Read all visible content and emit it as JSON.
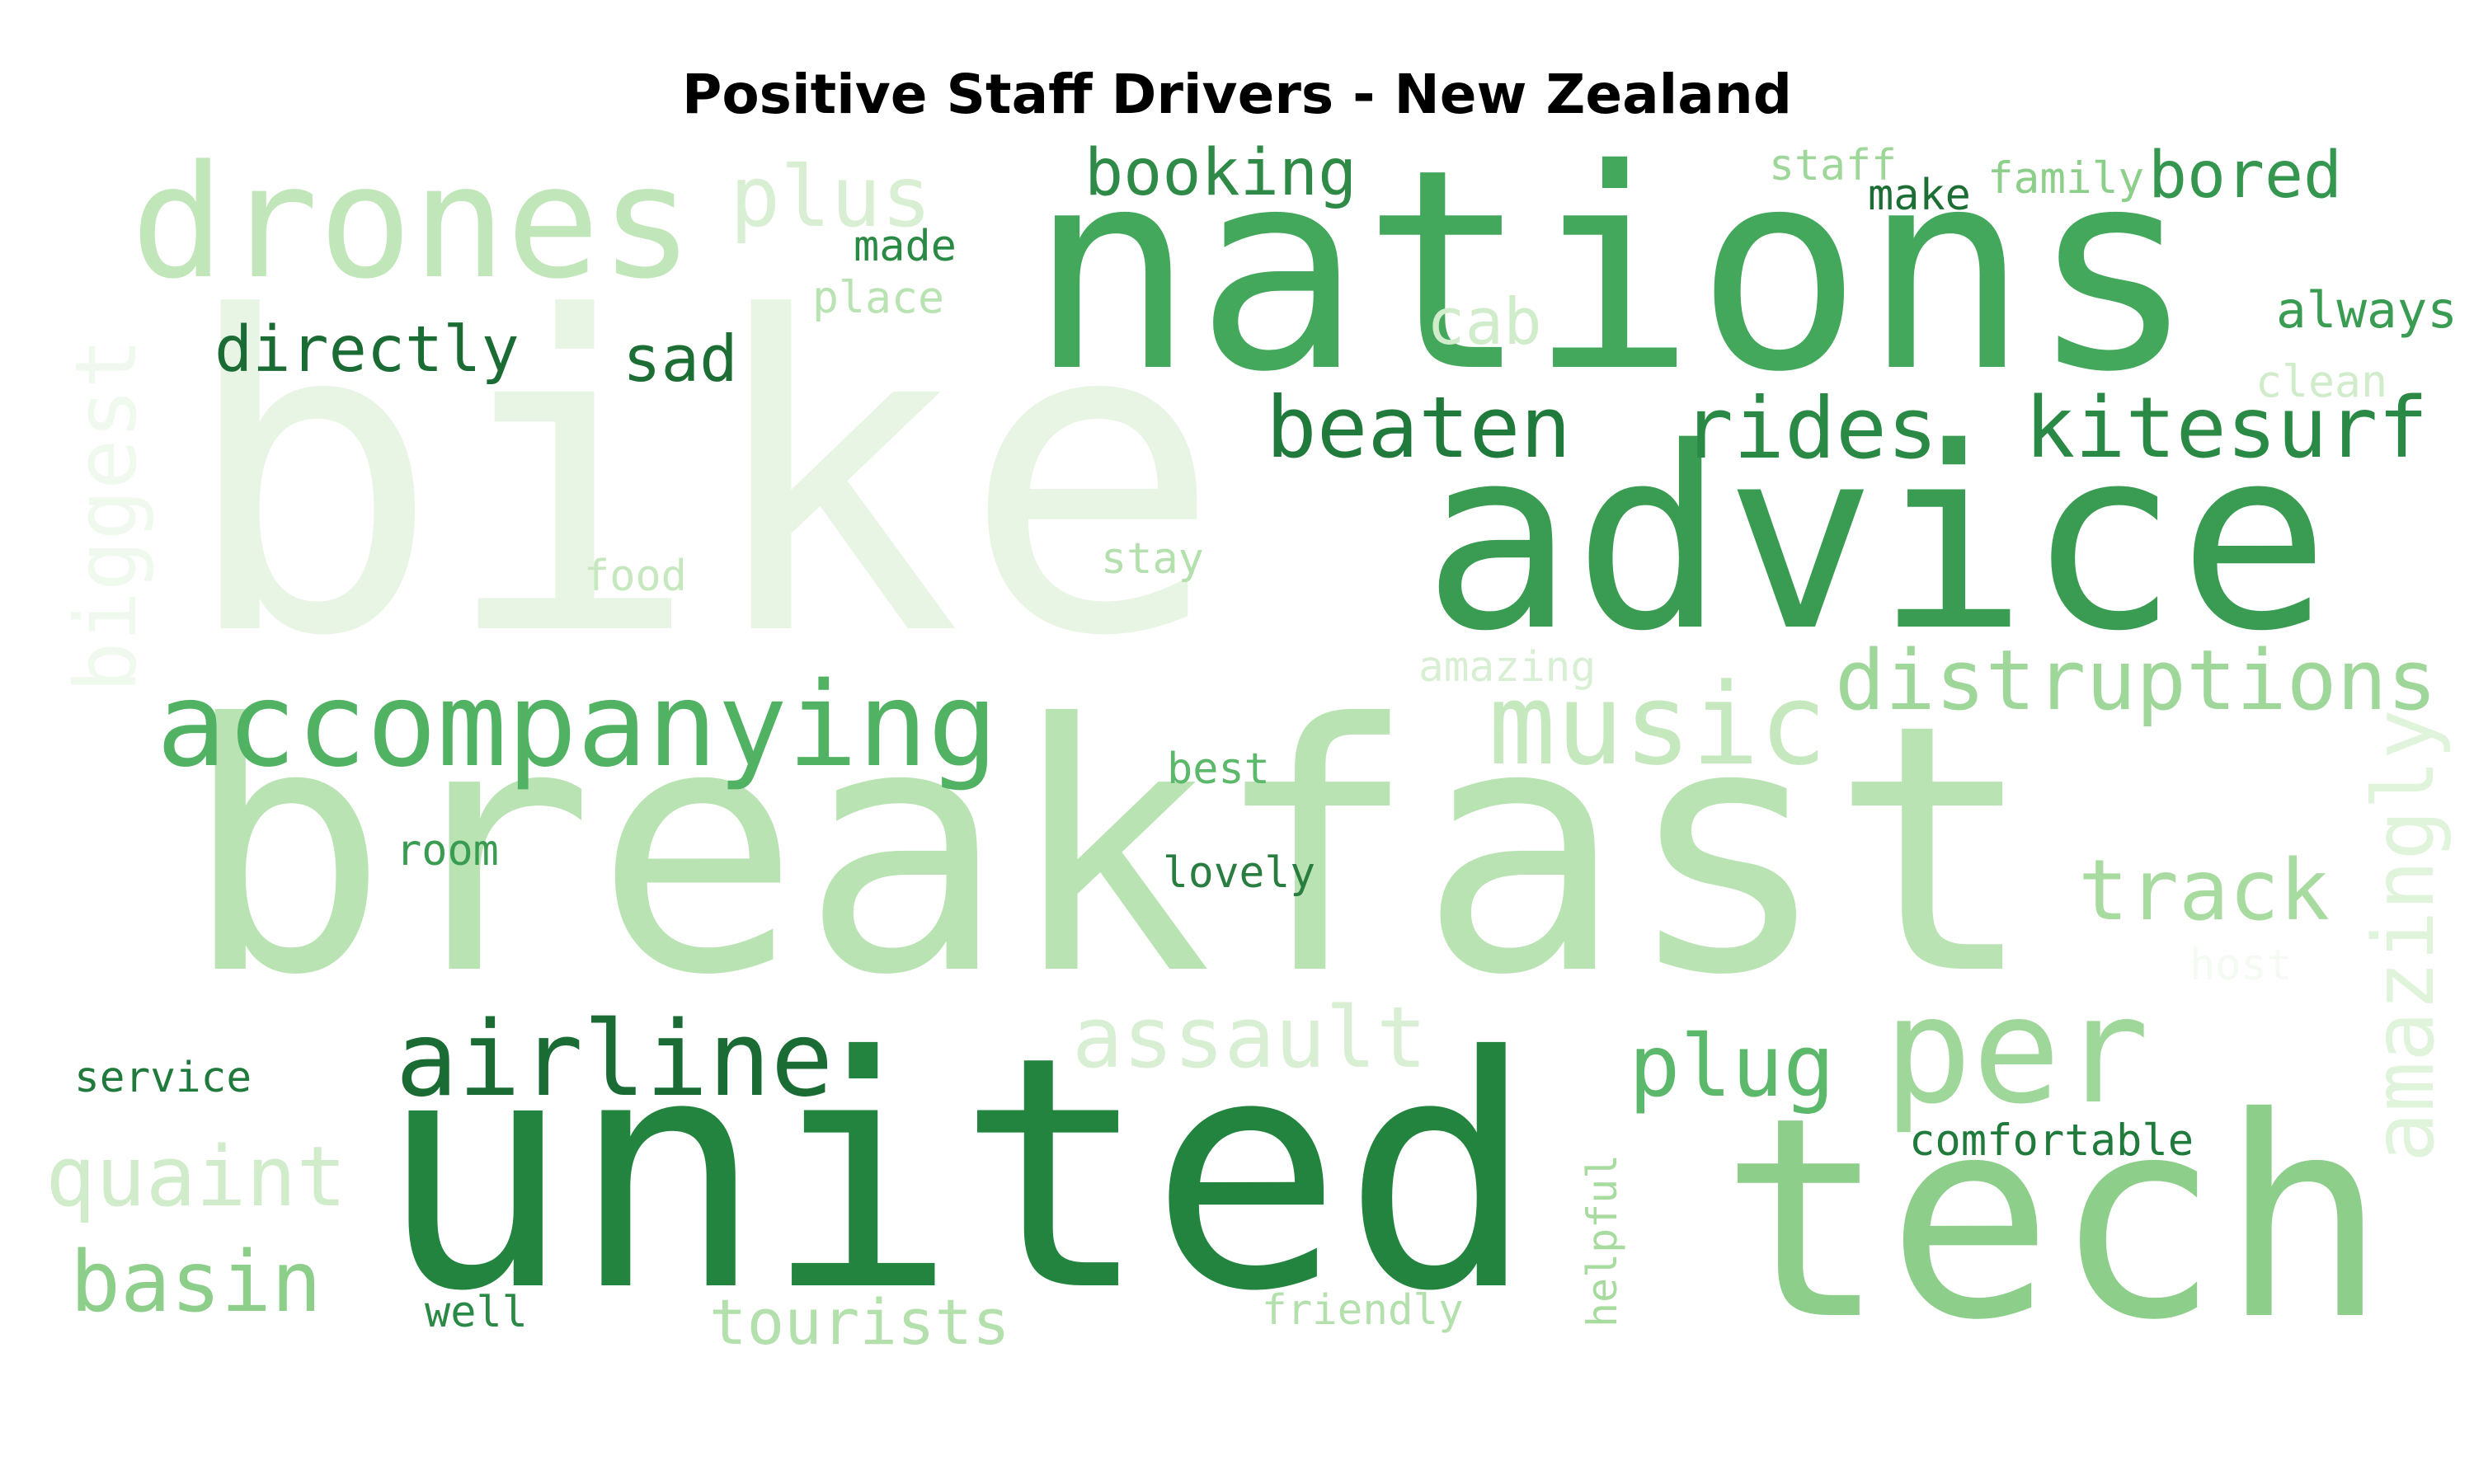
{
  "chart_data": {
    "type": "wordcloud",
    "title": "Positive Staff Drivers - New Zealand",
    "words": [
      {
        "text": "bike",
        "color": "#e8f5e4"
      },
      {
        "text": "breakfast",
        "color": "#b9e3b3"
      },
      {
        "text": "nations",
        "color": "#43a75c"
      },
      {
        "text": "advice",
        "color": "#3a9c53"
      },
      {
        "text": "united",
        "color": "#22843f"
      },
      {
        "text": "tech",
        "color": "#8cce8a"
      },
      {
        "text": "drones",
        "color": "#c0e6b9"
      },
      {
        "text": "plus",
        "color": "#d8efd3"
      },
      {
        "text": "booking",
        "color": "#2f8a48"
      },
      {
        "text": "staff",
        "color": "#9fd79a"
      },
      {
        "text": "make",
        "color": "#1c6e35"
      },
      {
        "text": "family",
        "color": "#8cce8a"
      },
      {
        "text": "bored",
        "color": "#35964f"
      },
      {
        "text": "made",
        "color": "#2a8a45"
      },
      {
        "text": "place",
        "color": "#b9e3b3"
      },
      {
        "text": "directly",
        "color": "#1a6c34"
      },
      {
        "text": "sad",
        "color": "#1c6e35"
      },
      {
        "text": "cab",
        "color": "#d0ecca"
      },
      {
        "text": "always",
        "color": "#3a9c53"
      },
      {
        "text": "clean",
        "color": "#d0ecca"
      },
      {
        "text": "biggest",
        "color": "#f0f9ed"
      },
      {
        "text": "beaten",
        "color": "#1f7a3b"
      },
      {
        "text": "rides",
        "color": "#2a8a45"
      },
      {
        "text": "kitesurf",
        "color": "#2a8a45"
      },
      {
        "text": "food",
        "color": "#c6e8bf"
      },
      {
        "text": "stay",
        "color": "#b3e0ac"
      },
      {
        "text": "accompanying",
        "color": "#52b264"
      },
      {
        "text": "music",
        "color": "#c6e8bf"
      },
      {
        "text": "amazing",
        "color": "#d8efd3"
      },
      {
        "text": "distruptions",
        "color": "#9fd79a"
      },
      {
        "text": "best",
        "color": "#5cb86a"
      },
      {
        "text": "amazingly",
        "color": "#e0f3db"
      },
      {
        "text": "room",
        "color": "#3a9c53"
      },
      {
        "text": "lovely",
        "color": "#2a7d40"
      },
      {
        "text": "track",
        "color": "#a8db9f"
      },
      {
        "text": "host",
        "color": "#f4fbf2"
      },
      {
        "text": "airline",
        "color": "#1a6c34"
      },
      {
        "text": "assault",
        "color": "#d8efd3"
      },
      {
        "text": "plug",
        "color": "#5cb86a"
      },
      {
        "text": "per",
        "color": "#9fd79a"
      },
      {
        "text": "service",
        "color": "#1f7a3b"
      },
      {
        "text": "comfortable",
        "color": "#1f7a3b"
      },
      {
        "text": "quaint",
        "color": "#d0ecca"
      },
      {
        "text": "basin",
        "color": "#8cce8a"
      },
      {
        "text": "helpful",
        "color": "#a8db9f"
      },
      {
        "text": "well",
        "color": "#2a8a45"
      },
      {
        "text": "tourists",
        "color": "#b3e0ac"
      },
      {
        "text": "friendly",
        "color": "#b3e0ac"
      }
    ]
  }
}
